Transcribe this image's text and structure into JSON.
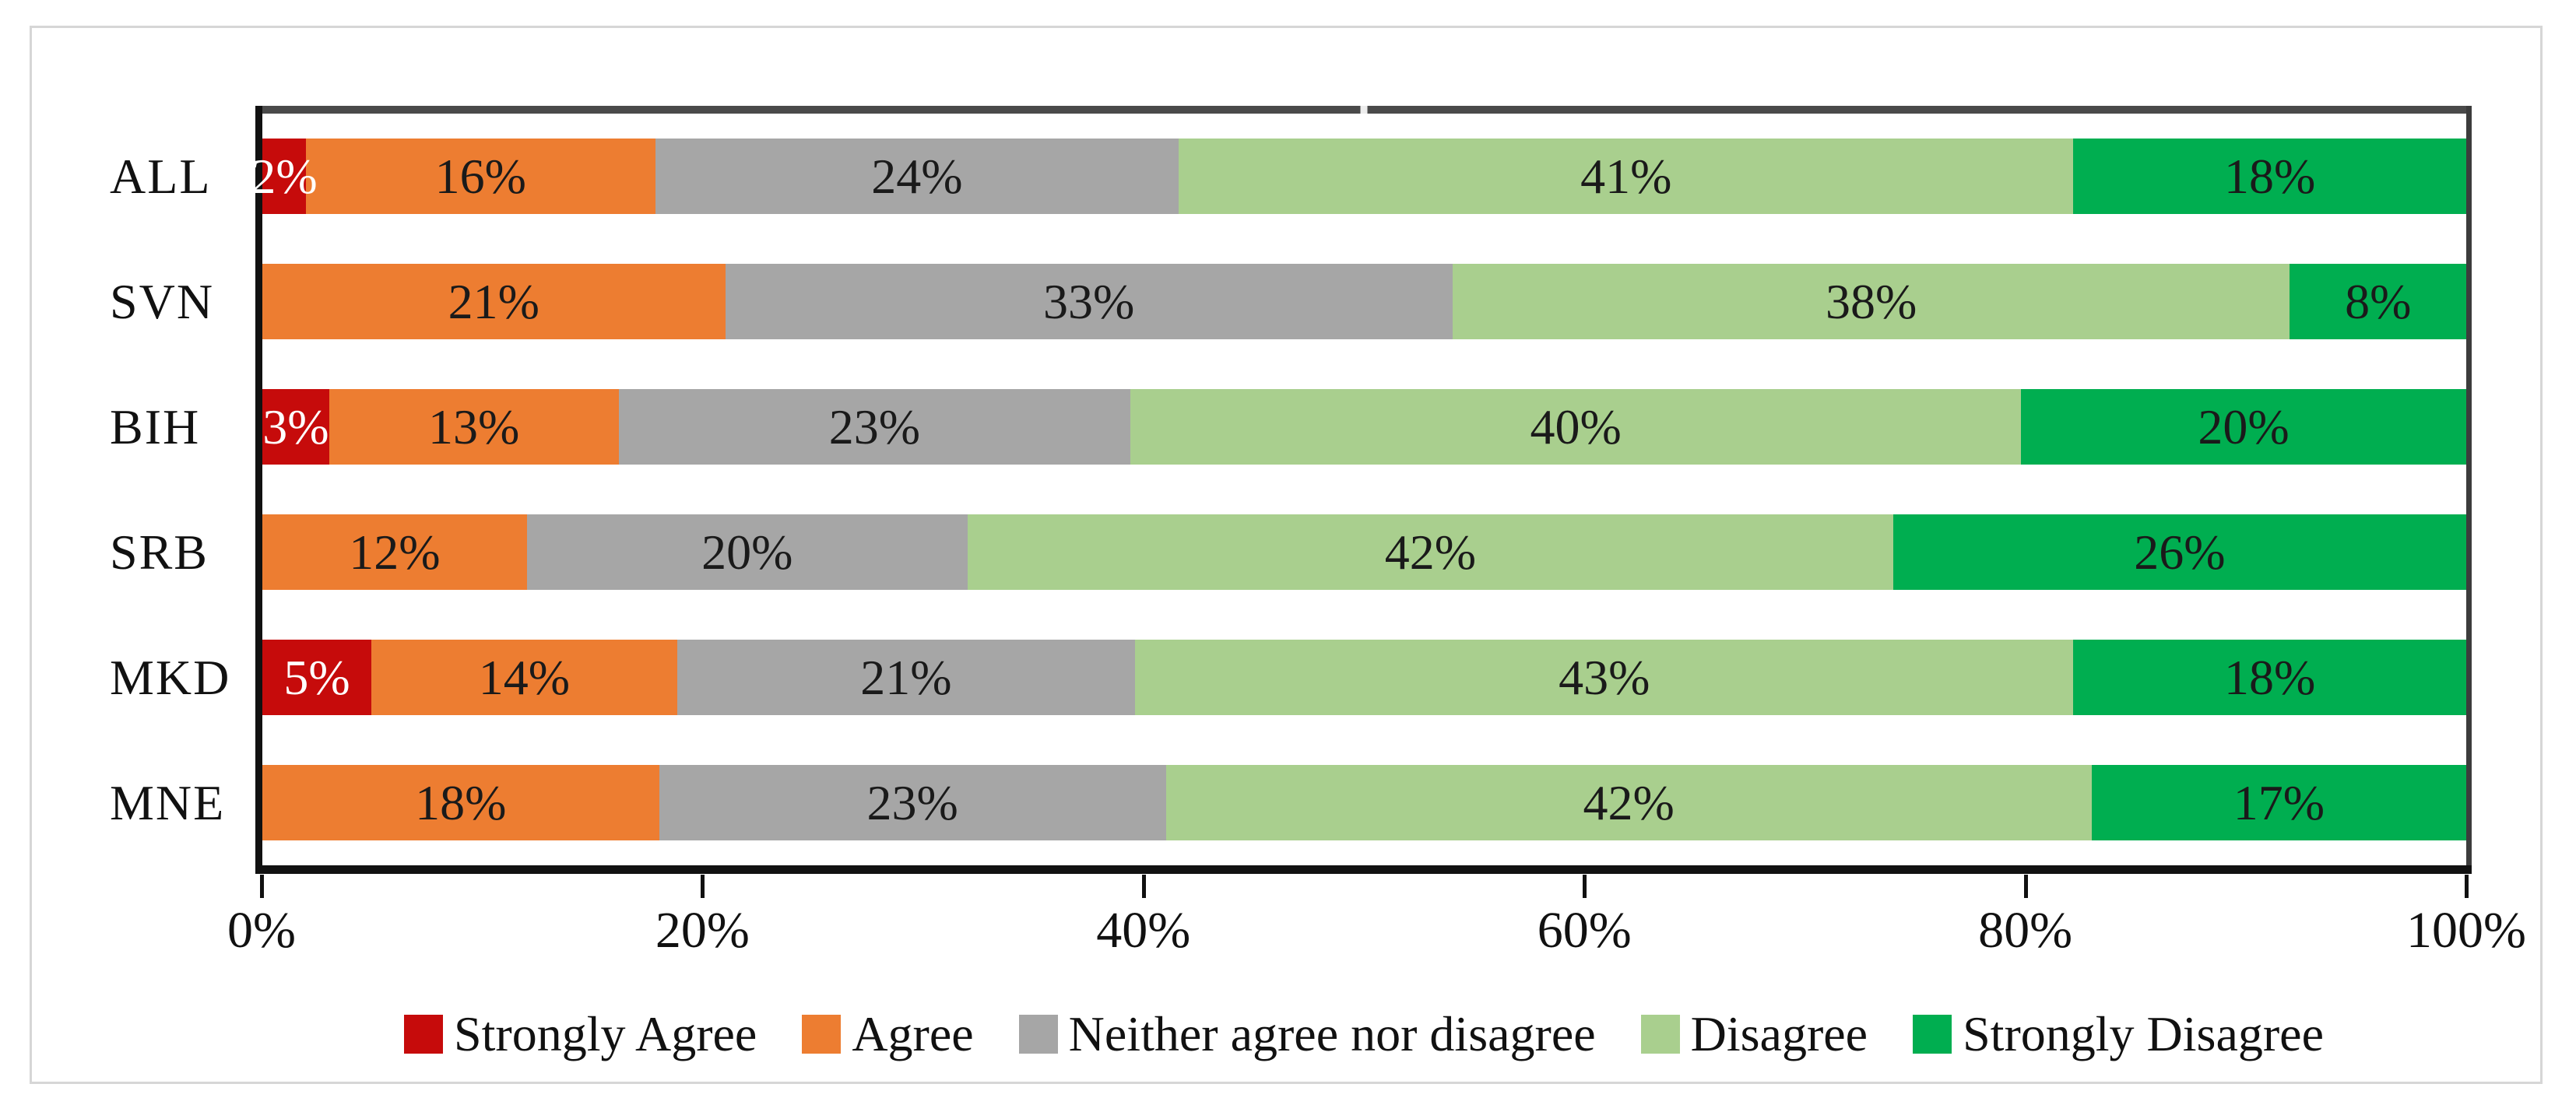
{
  "chart_data": {
    "type": "bar",
    "variant": "horizontal-100pct-stacked",
    "title": "",
    "xlabel": "",
    "ylabel": "",
    "xlim": [
      0,
      100
    ],
    "grid": false,
    "legend_position": "bottom",
    "label_format": "{v}%",
    "zero_values_not_drawn": true,
    "categories": [
      "ALL",
      "SVN",
      "BIH",
      "SRB",
      "MKD",
      "MNE"
    ],
    "series": [
      {
        "name": "Strongly Agree",
        "color": "#c60b0b",
        "label_color": "#ffffff",
        "values": [
          2,
          0,
          3,
          0,
          5,
          0
        ]
      },
      {
        "name": "Agree",
        "color": "#ed7d31",
        "label_color": "#1a1a1a",
        "values": [
          16,
          21,
          13,
          12,
          14,
          18
        ]
      },
      {
        "name": "Neither agree nor disagree",
        "color": "#a6a6a6",
        "label_color": "#1a1a1a",
        "values": [
          24,
          33,
          23,
          20,
          21,
          23
        ]
      },
      {
        "name": "Disagree",
        "color": "#a9cf8e",
        "label_color": "#1a1a1a",
        "values": [
          41,
          38,
          40,
          42,
          43,
          42
        ]
      },
      {
        "name": "Strongly Disagree",
        "color": "#00ae50",
        "label_color": "#1a1a1a",
        "values": [
          18,
          8,
          20,
          26,
          18,
          17
        ]
      }
    ],
    "x_ticks": [
      {
        "label": "0%",
        "pos": 0
      },
      {
        "label": "20%",
        "pos": 20
      },
      {
        "label": "40%",
        "pos": 40
      },
      {
        "label": "60%",
        "pos": 60
      },
      {
        "label": "80%",
        "pos": 80
      },
      {
        "label": "100%",
        "pos": 100
      }
    ],
    "legend": [
      "Strongly Agree",
      "Agree",
      "Neither agree nor disagree",
      "Disagree",
      "Strongly Disagree"
    ]
  },
  "colors": {
    "frame_border": "#d6d6d6",
    "plot_top_border": "#4a4a4a",
    "axis": "#111111",
    "background": "#ffffff"
  }
}
